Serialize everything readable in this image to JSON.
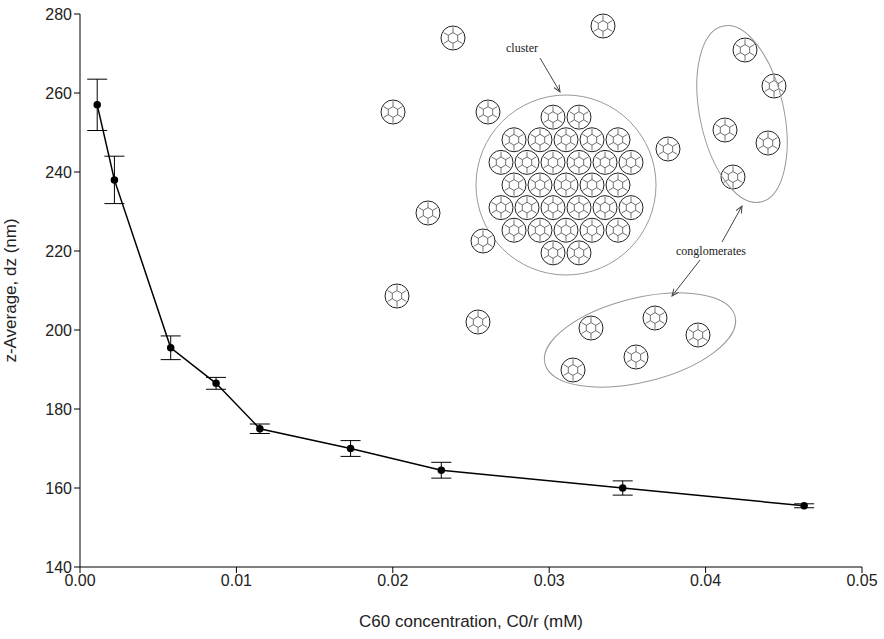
{
  "chart_data": {
    "type": "line",
    "x": [
      0.0011,
      0.0022,
      0.0058,
      0.0087,
      0.0115,
      0.0173,
      0.0231,
      0.0347,
      0.0463
    ],
    "values": [
      257,
      238,
      195.5,
      186.5,
      175,
      170,
      164.5,
      160,
      155.5
    ],
    "errors": [
      6.5,
      6,
      3,
      1.5,
      1.2,
      2,
      2,
      1.8,
      0.5
    ],
    "color": "#000000",
    "marker": "circle",
    "xlabel": "C60 concentration, C0/r (mM)",
    "ylabel": "z-Average, dz (nm)",
    "xlim": [
      0,
      0.05
    ],
    "xticks": [
      {
        "value": 0,
        "label": "0.00"
      },
      {
        "value": 0.01,
        "label": "0.01"
      },
      {
        "value": 0.02,
        "label": "0.02"
      },
      {
        "value": 0.03,
        "label": "0.03"
      },
      {
        "value": 0.04,
        "label": "0.04"
      },
      {
        "value": 0.05,
        "label": "0.05"
      }
    ],
    "ylim": [
      140,
      280
    ],
    "yticks": [
      140,
      160,
      180,
      200,
      220,
      240,
      260,
      280
    ],
    "grid": false,
    "annotations": [
      "cluster",
      "conglomerates"
    ]
  }
}
